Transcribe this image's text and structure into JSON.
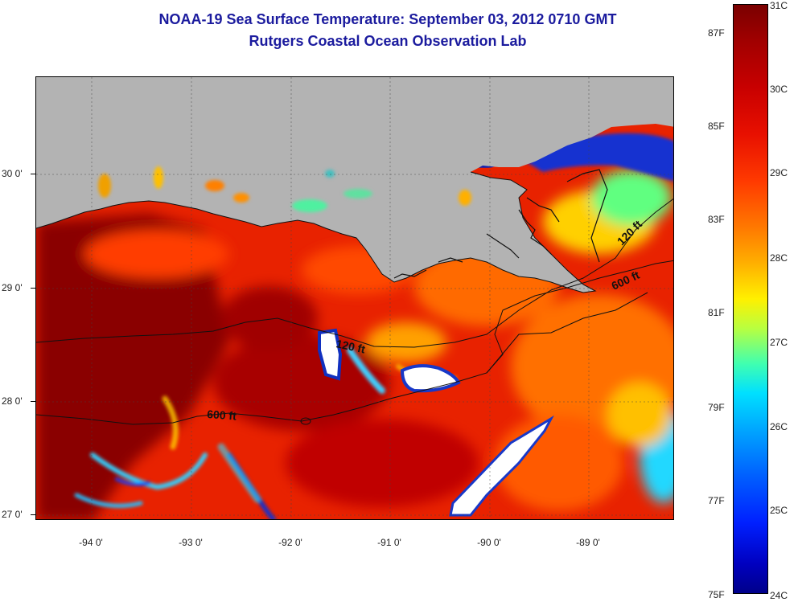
{
  "title": {
    "line1": "NOAA-19 Sea Surface Temperature:  September 03, 2012 0710 GMT",
    "line2": "Rutgers Coastal Ocean Observation Lab"
  },
  "axes": {
    "lat_labels": [
      "30 0'",
      "29 0'",
      "28 0'",
      "27 0'"
    ],
    "lon_labels": [
      "-94 0'",
      "-93 0'",
      "-92 0'",
      "-91 0'",
      "-90 0'",
      "-89 0'"
    ]
  },
  "contour_labels": {
    "c120_west": "120 ft",
    "c120_east": "120 ft",
    "c600_west": "600 ft",
    "c600_east": "600 ft"
  },
  "colorbar": {
    "fahrenheit": [
      "87F",
      "85F",
      "83F",
      "81F",
      "79F",
      "77F",
      "75F"
    ],
    "celsius": [
      "31C",
      "30C",
      "29C",
      "28C",
      "27C",
      "26C",
      "25C",
      "24C"
    ]
  },
  "colors": {
    "land": "#b3b3b3",
    "cloud": "#ffffff",
    "warm_max": "#7a0000",
    "cold_min": "#00008a"
  }
}
